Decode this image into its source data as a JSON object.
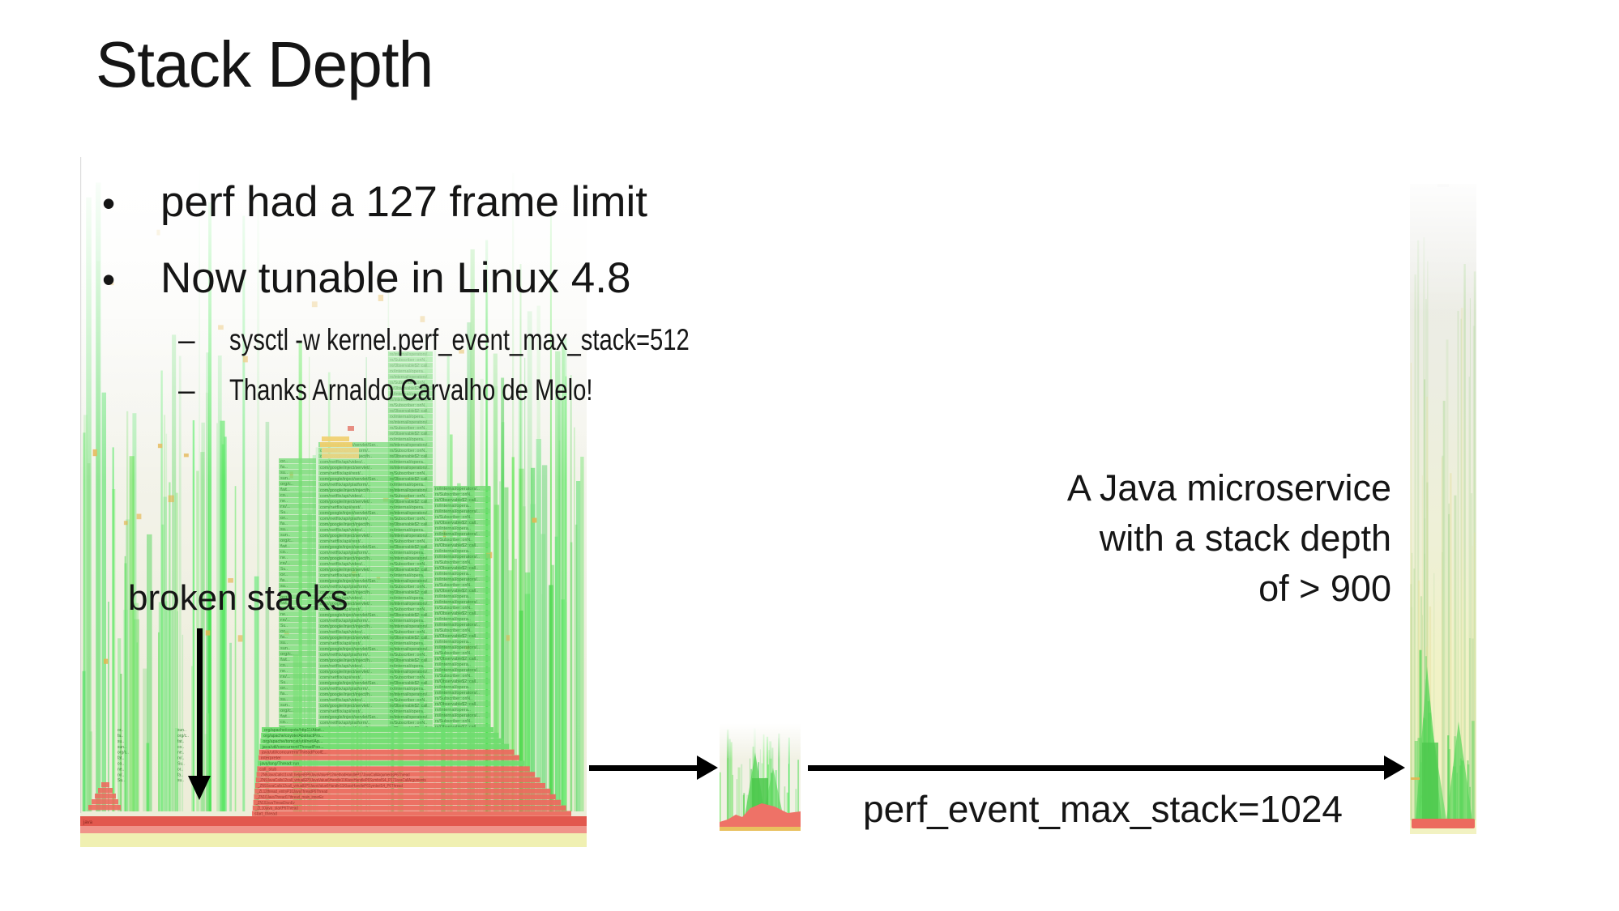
{
  "slide": {
    "title": "Stack Depth",
    "bullet_char": "•",
    "dash_char": "–",
    "bullets": [
      {
        "text": "perf had a 127 frame limit"
      },
      {
        "text": "Now tunable in Linux 4.8"
      }
    ],
    "sub_bullets": [
      {
        "text": "sysctl -w kernel.perf_event_max_stack=512"
      },
      {
        "text": "Thanks Arnaldo Carvalho de Melo!"
      }
    ],
    "annotations": {
      "broken_stacks": "broken stacks",
      "microservice_lines": [
        "A Java microservice",
        "with a stack depth",
        "of > 900"
      ],
      "perf_param": "perf_event_max_stack=1024"
    }
  },
  "flamegraphs": {
    "left": {
      "root_label": "java",
      "towerA_labels": [
        "com/google/inject/servlet/Ser..",
        "com/netflix/api/platform/..",
        "com/google/inject/inject/h..",
        "com/netflix/api/video/..",
        "com/google/inject/servlet/..",
        "com/netflix/api/rest/.."
      ],
      "towerC_labels": [
        "rx/internal/operators/..",
        "rx/Subscriber::onN..",
        "rx/Observable$2::call..",
        "rx/internal/opera.."
      ],
      "stub_labels": [
        "or..",
        "fa..",
        "su..",
        "sun..",
        "org/c..",
        "fat..",
        "co..",
        "ne..",
        "rx/..",
        "Su.."
      ],
      "cap_label": "..Main..",
      "bottom_rows": [
        {
          "c": "green",
          "t": "org/apache/coyote/http11/Abst..."
        },
        {
          "c": "green",
          "t": "org/apache/coyote/AbstractPro..."
        },
        {
          "c": "green",
          "t": "org/apache/tomcat/util/net/Ap..."
        },
        {
          "c": "green",
          "t": "java/util/concurrent/ThreadPoo..."
        },
        {
          "c": "red",
          "t": "java/util/concurrent/ThreadPoolE..."
        },
        {
          "c": "red",
          "t": "interpreter"
        },
        {
          "c": "green",
          "t": "java/lang/Thread::run"
        },
        {
          "c": "red",
          "t": "call_stub"
        },
        {
          "c": "red",
          "t": "_ZN9JavaCalls11call_helperEP9JavaValueP12methodHandleP17JavaCallArgumentsP6Thread"
        },
        {
          "c": "red",
          "t": "_ZN9JavaCalls12call_virtualEP9JavaValue6Handle11KlassHandleP6SymbolS4_P17JavaCallArguments"
        },
        {
          "c": "red",
          "t": "_ZN9JavaCalls12call_virtualEP9JavaValue6Handle11KlassHandleP6SymbolS4_P6Thread"
        },
        {
          "c": "red",
          "t": "_ZL12thread_entryP10JavaThreadP6Thread"
        },
        {
          "c": "red",
          "t": "_ZN10JavaThread17thread_main_innerEv"
        },
        {
          "c": "red",
          "t": "_ZN10JavaThread3runEv"
        },
        {
          "c": "red",
          "t": "_ZL10java_startP6Thread"
        },
        {
          "c": "red",
          "t": "start_thread"
        }
      ]
    }
  },
  "colors": {
    "text": "#151515",
    "arrow": "#000000",
    "flame_green": "#5ad55a",
    "flame_green_row": "#74d974",
    "flame_red": "#ec6a5e",
    "flame_red_dark": "#e2584e",
    "flame_pink": "#f0948a",
    "flame_orange": "#e3b54f",
    "flame_base_yellow": "#f0f0b2",
    "flame_bg_cream": "#ededd8",
    "right_bg_top": "#ececea",
    "right_bg_bottom": "#f2f2c2"
  }
}
